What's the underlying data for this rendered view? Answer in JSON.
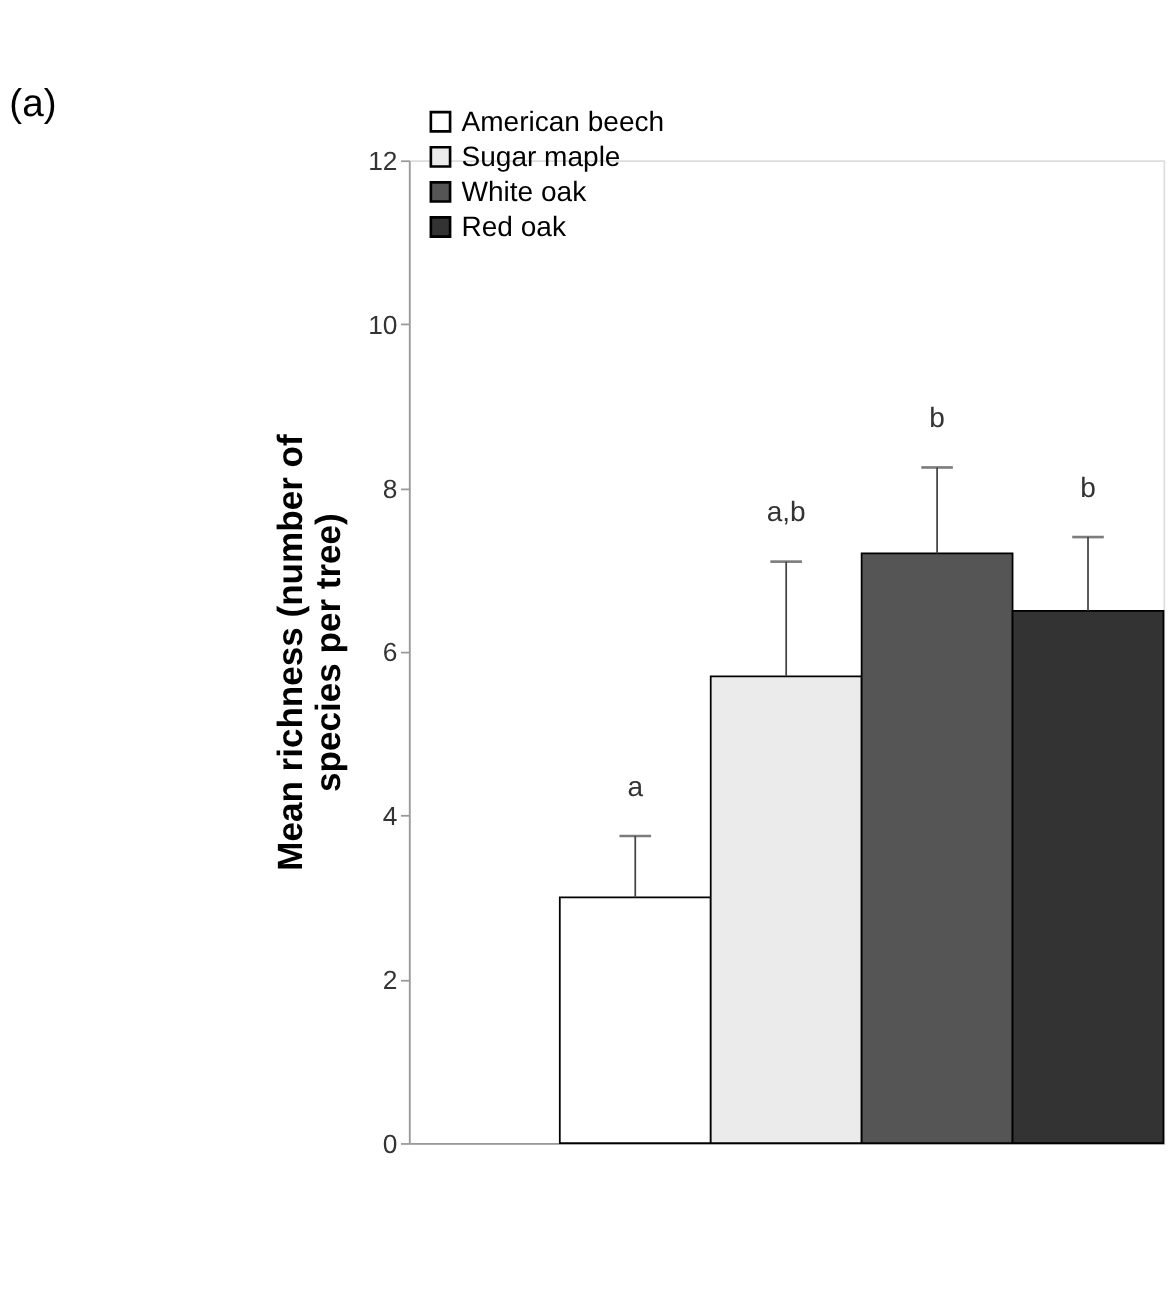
{
  "chart_data": {
    "type": "bar",
    "title": "(a)",
    "ylabel": "Mean richness (number of\nspecies per tree)",
    "categories": [
      null,
      null,
      null,
      null,
      null
    ],
    "series": [
      {
        "name": "American beech",
        "color": "#ffffff",
        "values": [
          null,
          3.0,
          null,
          null,
          null
        ],
        "errors": [
          null,
          [
            3.0,
            3.75
          ],
          null,
          null,
          null
        ]
      },
      {
        "name": "Sugar maple",
        "color": "#ebebeb",
        "values": [
          null,
          null,
          5.7,
          null,
          null
        ],
        "errors": [
          null,
          null,
          [
            5.7,
            7.1
          ],
          null,
          null
        ]
      },
      {
        "name": "White oak",
        "color": "#555555",
        "values": [
          null,
          null,
          null,
          7.2,
          null
        ],
        "errors": [
          null,
          null,
          null,
          [
            7.2,
            8.25
          ],
          null
        ]
      },
      {
        "name": "Red oak",
        "color": "#333333",
        "values": [
          null,
          null,
          null,
          null,
          6.5
        ],
        "errors": [
          null,
          null,
          null,
          null,
          [
            6.5,
            7.4
          ]
        ]
      }
    ],
    "annotations": [
      "a",
      "a,b",
      "b",
      "b"
    ],
    "ylim": [
      0,
      12
    ],
    "yticks": [
      0,
      2,
      4,
      6,
      8,
      10,
      12
    ],
    "grid": false,
    "legend": "top left"
  }
}
